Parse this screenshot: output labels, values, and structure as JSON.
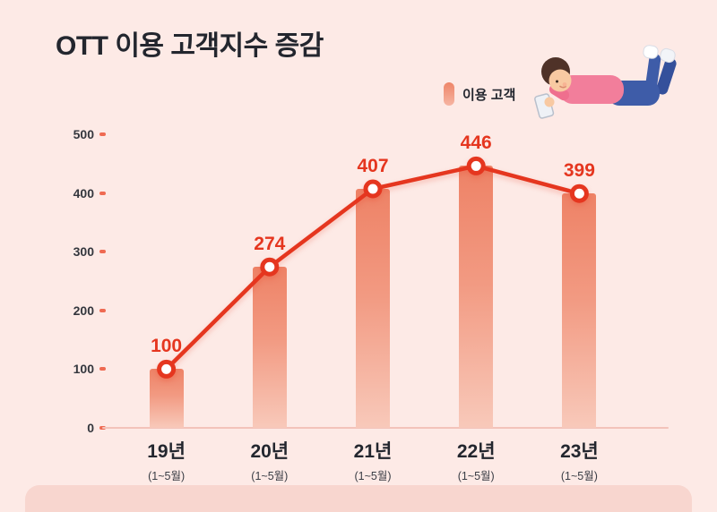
{
  "page": {
    "title": "OTT 이용 고객지수 증감"
  },
  "legend": {
    "label": "이용 고객"
  },
  "chart_data": {
    "type": "bar",
    "title": "OTT 이용 고객지수 증감",
    "categories": [
      "19년",
      "20년",
      "21년",
      "22년",
      "23년"
    ],
    "category_sublabels": [
      "(1~5월)",
      "(1~5월)",
      "(1~5월)",
      "(1~5월)",
      "(1~5월)"
    ],
    "series": [
      {
        "name": "이용 고객",
        "type": "bar-with-line-overlay",
        "values": [
          100,
          274,
          407,
          446,
          399
        ]
      }
    ],
    "ylim": [
      0,
      500
    ],
    "yticks": [
      0,
      100,
      200,
      300,
      400,
      500
    ],
    "grid": false,
    "legend_position": "top-right",
    "colors": {
      "background": "#fdeae6",
      "footer_strip": "#f8d6cf",
      "bar_top": "#ee8266",
      "bar_bottom": "#f8c9ba",
      "line": "#e5361f",
      "marker_fill": "#ffffff",
      "value_label": "#e5361f",
      "title_text": "#23262e",
      "axis_text": "#34373e"
    }
  }
}
